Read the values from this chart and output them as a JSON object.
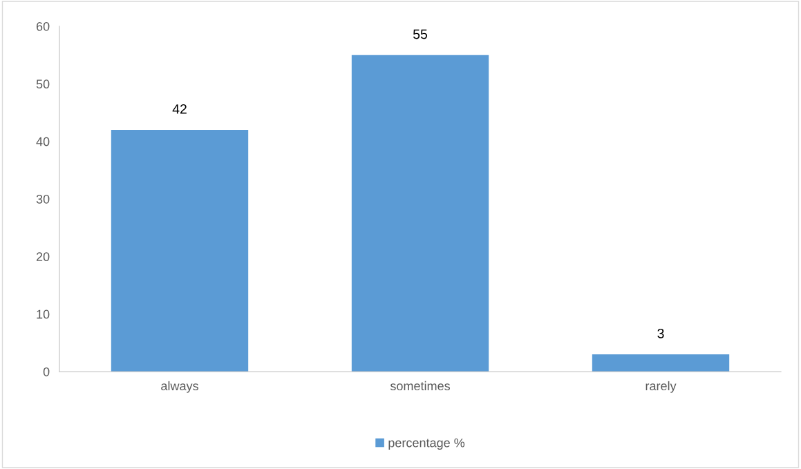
{
  "chart_data": {
    "type": "bar",
    "categories": [
      "always",
      "sometimes",
      "rarely"
    ],
    "series": [
      {
        "name": "percentage %",
        "color": "#5b9bd5",
        "values": [
          42,
          55,
          3
        ]
      }
    ],
    "ylim": [
      0,
      60
    ],
    "yticks": [
      0,
      10,
      20,
      30,
      40,
      50,
      60
    ],
    "data_labels": true,
    "grid": false,
    "legend": "bottom"
  }
}
